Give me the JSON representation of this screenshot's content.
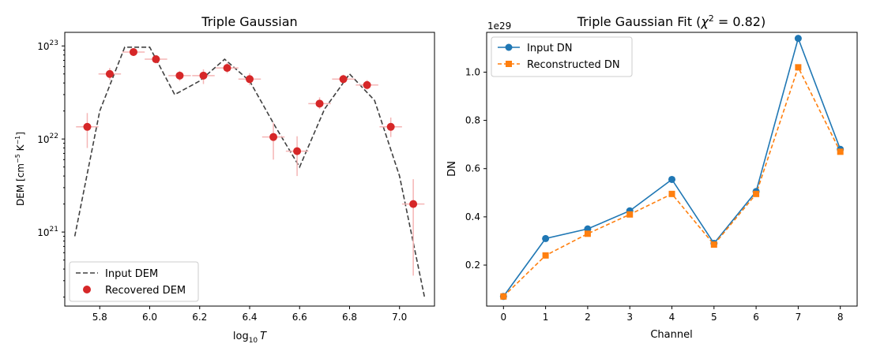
{
  "chart_data": [
    {
      "type": "line",
      "title": "Triple Gaussian",
      "xlabel_base": "log",
      "xlabel_sub": "10",
      "xlabel_var": "T",
      "ylabel_main": "DEM [cm",
      "ylabel_exp1": "−5",
      "ylabel_mid": " K",
      "ylabel_exp2": "−1",
      "ylabel_end": "]",
      "yscale": "log",
      "xlim": [
        5.66,
        7.14
      ],
      "ylim": [
        1.6e+20,
        1.4e+23
      ],
      "xticks": [
        5.8,
        6.0,
        6.2,
        6.4,
        6.6,
        6.8,
        7.0
      ],
      "xtick_labels": [
        "5.8",
        "6.0",
        "6.2",
        "6.4",
        "6.6",
        "6.8",
        "7.0"
      ],
      "yticks": [
        {
          "value": 1e+21,
          "base": "10",
          "exp": "21"
        },
        {
          "value": 1e+22,
          "base": "10",
          "exp": "22"
        },
        {
          "value": 1e+23,
          "base": "10",
          "exp": "23"
        }
      ],
      "legend_position": "lower-left",
      "series": [
        {
          "name": "Input DEM",
          "style": "dashed-line",
          "color": "#404040",
          "x": [
            5.7,
            5.8,
            5.9,
            6.0,
            6.1,
            6.2,
            6.3,
            6.4,
            6.5,
            6.6,
            6.7,
            6.8,
            6.9,
            7.0,
            7.1
          ],
          "y": [
            9e+20,
            2e+22,
            9.7e+22,
            9.7e+22,
            3e+22,
            4.2e+22,
            7.2e+22,
            4.2e+22,
            1.4e+22,
            5e+21,
            2.1e+22,
            5e+22,
            2.6e+22,
            4e+21,
            2e+20
          ]
        },
        {
          "name": "Recovered DEM",
          "style": "markers-errorbars",
          "color": "#d62728",
          "error_color": "#f5b5b5",
          "x": [
            5.75,
            5.84,
            5.935,
            6.025,
            6.12,
            6.215,
            6.31,
            6.4,
            6.495,
            6.59,
            6.68,
            6.775,
            6.87,
            6.965,
            7.055
          ],
          "y": [
            1.35e+22,
            5e+22,
            8.6e+22,
            7.2e+22,
            4.8e+22,
            4.8e+22,
            5.8e+22,
            4.4e+22,
            1.05e+22,
            7.4e+21,
            2.4e+22,
            4.4e+22,
            3.8e+22,
            1.35e+22,
            2e+21
          ],
          "y_low": [
            8e+21,
            4.3e+22,
            7.8e+22,
            6.5e+22,
            4.2e+22,
            3.9e+22,
            5.1e+22,
            3.8e+22,
            6e+21,
            4e+21,
            2.1e+22,
            4e+22,
            3.4e+22,
            1.05e+22,
            3.4e+20
          ],
          "y_high": [
            1.9e+22,
            5.8e+22,
            9.4e+22,
            7.9e+22,
            5.4e+22,
            5.6e+22,
            6.6e+22,
            5.1e+22,
            1.5e+22,
            1.07e+22,
            2.8e+22,
            4.9e+22,
            4.3e+22,
            1.7e+22,
            3.7e+21
          ],
          "xerr": 0.045
        }
      ]
    },
    {
      "type": "line",
      "title_main": "Triple Gaussian Fit (",
      "title_chi": "χ",
      "title_exp": "2",
      "title_end": " = 0.82)",
      "xlabel": "Channel",
      "ylabel": "DN",
      "y_offset_label": "1e29",
      "xlim": [
        -0.4,
        8.4
      ],
      "ylim": [
        0.03,
        1.165
      ],
      "xticks": [
        0,
        1,
        2,
        3,
        4,
        5,
        6,
        7,
        8
      ],
      "xtick_labels": [
        "0",
        "1",
        "2",
        "3",
        "4",
        "5",
        "6",
        "7",
        "8"
      ],
      "yticks": [
        0.2,
        0.4,
        0.6,
        0.8,
        1.0
      ],
      "ytick_labels": [
        "0.2",
        "0.4",
        "0.6",
        "0.8",
        "1.0"
      ],
      "legend_position": "upper-left",
      "categories": [
        0,
        1,
        2,
        3,
        4,
        5,
        6,
        7,
        8
      ],
      "series": [
        {
          "name": "Input DN",
          "style": "solid-line-circles",
          "color": "#1f77b4",
          "values": [
            0.07,
            0.31,
            0.35,
            0.425,
            0.555,
            0.29,
            0.505,
            1.14,
            0.68
          ]
        },
        {
          "name": "Reconstructed DN",
          "style": "dashed-line-squares",
          "color": "#ff7f0e",
          "values": [
            0.07,
            0.24,
            0.33,
            0.41,
            0.495,
            0.285,
            0.495,
            1.02,
            0.67
          ]
        }
      ]
    }
  ]
}
